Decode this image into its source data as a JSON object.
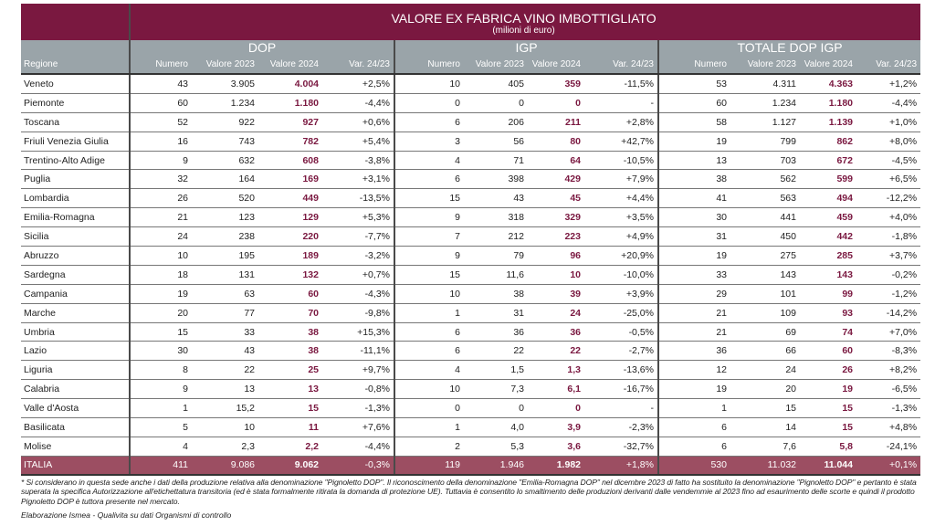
{
  "title": "VALORE EX FABRICA VINO IMBOTTIGLIATO",
  "subtitle": "(milioni di euro)",
  "groups": [
    "DOP",
    "IGP",
    "TOTALE DOP IGP"
  ],
  "region_header": "Regione",
  "column_headers": [
    "Numero",
    "Valore 2023",
    "Valore 2024",
    "Var. 24/23"
  ],
  "rows": [
    [
      "Veneto",
      "43",
      "3.905",
      "4.004",
      "+2,5%",
      "10",
      "405",
      "359",
      "-11,5%",
      "53",
      "4.311",
      "4.363",
      "+1,2%"
    ],
    [
      "Piemonte",
      "60",
      "1.234",
      "1.180",
      "-4,4%",
      "0",
      "0",
      "0",
      "-",
      "60",
      "1.234",
      "1.180",
      "-4,4%"
    ],
    [
      "Toscana",
      "52",
      "922",
      "927",
      "+0,6%",
      "6",
      "206",
      "211",
      "+2,8%",
      "58",
      "1.127",
      "1.139",
      "+1,0%"
    ],
    [
      "Friuli Venezia Giulia",
      "16",
      "743",
      "782",
      "+5,4%",
      "3",
      "56",
      "80",
      "+42,7%",
      "19",
      "799",
      "862",
      "+8,0%"
    ],
    [
      "Trentino-Alto Adige",
      "9",
      "632",
      "608",
      "-3,8%",
      "4",
      "71",
      "64",
      "-10,5%",
      "13",
      "703",
      "672",
      "-4,5%"
    ],
    [
      "Puglia",
      "32",
      "164",
      "169",
      "+3,1%",
      "6",
      "398",
      "429",
      "+7,9%",
      "38",
      "562",
      "599",
      "+6,5%"
    ],
    [
      "Lombardia",
      "26",
      "520",
      "449",
      "-13,5%",
      "15",
      "43",
      "45",
      "+4,4%",
      "41",
      "563",
      "494",
      "-12,2%"
    ],
    [
      "Emilia-Romagna",
      "21",
      "123",
      "129",
      "+5,3%",
      "9",
      "318",
      "329",
      "+3,5%",
      "30",
      "441",
      "459",
      "+4,0%"
    ],
    [
      "Sicilia",
      "24",
      "238",
      "220",
      "-7,7%",
      "7",
      "212",
      "223",
      "+4,9%",
      "31",
      "450",
      "442",
      "-1,8%"
    ],
    [
      "Abruzzo",
      "10",
      "195",
      "189",
      "-3,2%",
      "9",
      "79",
      "96",
      "+20,9%",
      "19",
      "275",
      "285",
      "+3,7%"
    ],
    [
      "Sardegna",
      "18",
      "131",
      "132",
      "+0,7%",
      "15",
      "11,6",
      "10",
      "-10,0%",
      "33",
      "143",
      "143",
      "-0,2%"
    ],
    [
      "Campania",
      "19",
      "63",
      "60",
      "-4,3%",
      "10",
      "38",
      "39",
      "+3,9%",
      "29",
      "101",
      "99",
      "-1,2%"
    ],
    [
      "Marche",
      "20",
      "77",
      "70",
      "-9,8%",
      "1",
      "31",
      "24",
      "-25,0%",
      "21",
      "109",
      "93",
      "-14,2%"
    ],
    [
      "Umbria",
      "15",
      "33",
      "38",
      "+15,3%",
      "6",
      "36",
      "36",
      "-0,5%",
      "21",
      "69",
      "74",
      "+7,0%"
    ],
    [
      "Lazio",
      "30",
      "43",
      "38",
      "-11,1%",
      "6",
      "22",
      "22",
      "-2,7%",
      "36",
      "66",
      "60",
      "-8,3%"
    ],
    [
      "Liguria",
      "8",
      "22",
      "25",
      "+9,7%",
      "4",
      "1,5",
      "1,3",
      "-13,6%",
      "12",
      "24",
      "26",
      "+8,2%"
    ],
    [
      "Calabria",
      "9",
      "13",
      "13",
      "-0,8%",
      "10",
      "7,3",
      "6,1",
      "-16,7%",
      "19",
      "20",
      "19",
      "-6,5%"
    ],
    [
      "Valle d'Aosta",
      "1",
      "15,2",
      "15",
      "-1,3%",
      "0",
      "0",
      "0",
      "-",
      "1",
      "15",
      "15",
      "-1,3%"
    ],
    [
      "Basilicata",
      "5",
      "10",
      "11",
      "+7,6%",
      "1",
      "4,0",
      "3,9",
      "-2,3%",
      "6",
      "14",
      "15",
      "+4,8%"
    ],
    [
      "Molise",
      "4",
      "2,3",
      "2,2",
      "-4,4%",
      "2",
      "5,3",
      "3,6",
      "-32,7%",
      "6",
      "7,6",
      "5,8",
      "-24,1%"
    ]
  ],
  "total_row": [
    "ITALIA",
    "411",
    "9.086",
    "9.062",
    "-0,3%",
    "119",
    "1.946",
    "1.982",
    "+1,8%",
    "530",
    "11.032",
    "11.044",
    "+0,1%"
  ],
  "footnote": "* Si considerano in questa sede anche i dati della produzione relativa alla denominazione \"Pignoletto DOP\". Il riconoscimento della denominazione \"Emilia-Romagna DOP\" nel dicembre 2023 di fatto ha sostituito la denominazione \"Pignoletto DOP\" e pertanto è stata superata la specifica Autorizzazione all'etichettatura transitoria (ed è stata formalmente ritirata la domanda di protezione UE). Tuttavia è consentito lo smaltimento delle produzioni derivanti dalle vendemmie al 2023 fino ad esaurimento delle scorte e quindi il prodotto Pignoletto DOP è tuttora presente nel mercato.",
  "source": "Elaborazione Ismea - Qualivita su dati Organismi di controllo",
  "colors": {
    "primary": "#7a1840",
    "header_gray": "#9aa4a9",
    "total_row": "#9c4e62"
  }
}
